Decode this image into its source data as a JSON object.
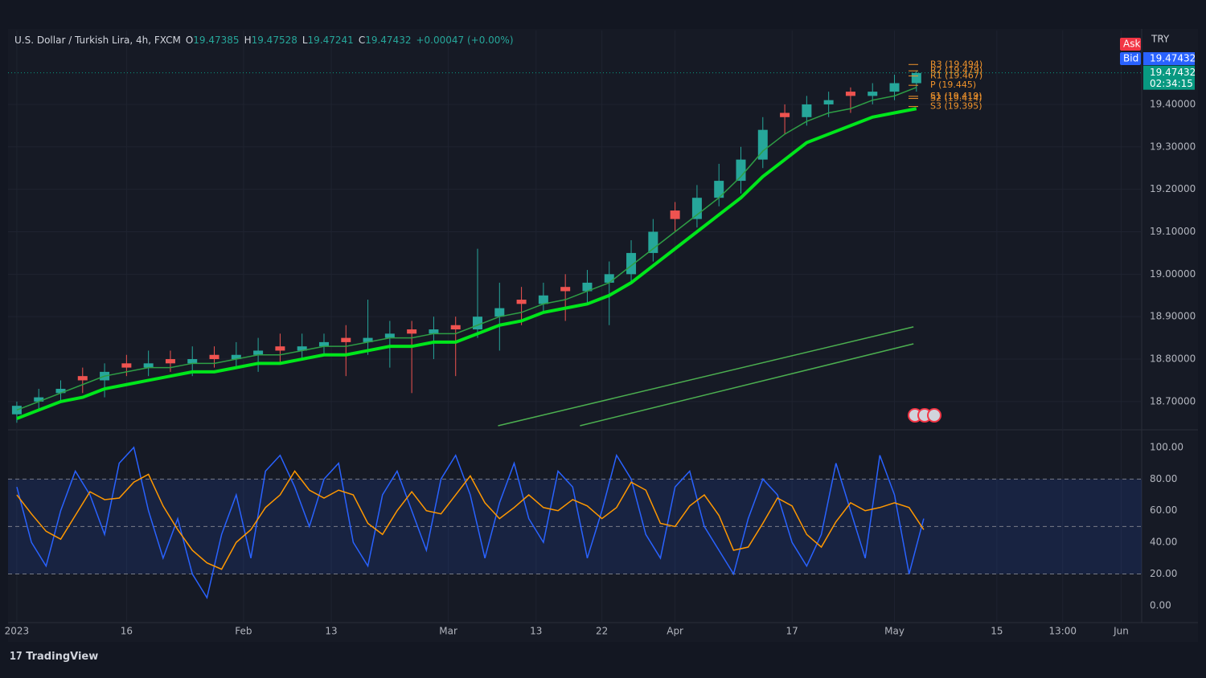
{
  "header": {
    "title": "U.S. Dollar / Turkish Lira, 4h, FXCM",
    "ohlc": [
      {
        "label": "O",
        "value": 19.47385
      },
      {
        "label": "H",
        "value": 19.47528
      },
      {
        "label": "L",
        "value": 19.47241
      },
      {
        "label": "C",
        "value": 19.47432
      }
    ],
    "change": "+0.00047 (+0.00%)",
    "currency": "TRY",
    "ask_label": "Ask",
    "bid_label": "Bid",
    "bid": 19.47432,
    "last_price": 19.47432,
    "countdown": "02:34:15"
  },
  "footer": {
    "brand": "TradingView"
  },
  "chart_data": [
    {
      "type": "candlestick",
      "up_color": "#26a69a",
      "down_color": "#ef5350",
      "grid": true,
      "xlim": [
        -1.2,
        153.8
      ],
      "ylim": [
        18.643,
        19.574
      ],
      "xticks": [
        {
          "value": 0,
          "label": "2023"
        },
        {
          "value": 15,
          "label": "16"
        },
        {
          "value": 31,
          "label": "Feb"
        },
        {
          "value": 43,
          "label": "13"
        },
        {
          "value": 59,
          "label": "Mar"
        },
        {
          "value": 71,
          "label": "13"
        },
        {
          "value": 80,
          "label": "22"
        },
        {
          "value": 90,
          "label": "Apr"
        },
        {
          "value": 106,
          "label": "17"
        },
        {
          "value": 120,
          "label": "May"
        },
        {
          "value": 134,
          "label": "15"
        },
        {
          "value": 143,
          "label": "13:00"
        },
        {
          "value": 151,
          "label": "Jun"
        }
      ],
      "yticks": [
        {
          "value": 18.7,
          "label": "18.70000"
        },
        {
          "value": 18.8,
          "label": "18.80000"
        },
        {
          "value": 18.9,
          "label": "18.90000"
        },
        {
          "value": 19.0,
          "label": "19.00000"
        },
        {
          "value": 19.1,
          "label": "19.10000"
        },
        {
          "value": 19.2,
          "label": "19.20000"
        },
        {
          "value": 19.3,
          "label": "19.30000"
        },
        {
          "value": 19.4,
          "label": "19.40000"
        }
      ],
      "x": [
        0,
        3,
        6,
        9,
        12,
        15,
        18,
        21,
        24,
        27,
        30,
        33,
        36,
        39,
        42,
        45,
        48,
        51,
        54,
        57,
        60,
        63,
        66,
        69,
        72,
        75,
        78,
        81,
        84,
        87,
        90,
        93,
        96,
        99,
        102,
        105,
        108,
        111,
        114,
        117,
        120,
        123
      ],
      "open": [
        18.67,
        18.7,
        18.72,
        18.76,
        18.75,
        18.79,
        18.78,
        18.8,
        18.79,
        18.81,
        18.8,
        18.81,
        18.83,
        18.82,
        18.83,
        18.85,
        18.84,
        18.85,
        18.87,
        18.86,
        18.88,
        18.87,
        18.9,
        18.94,
        18.93,
        18.97,
        18.96,
        18.98,
        19.0,
        19.05,
        19.15,
        19.13,
        19.18,
        19.22,
        19.27,
        19.38,
        19.37,
        19.4,
        19.43,
        19.42,
        19.43,
        19.45
      ],
      "high": [
        18.7,
        18.73,
        18.75,
        18.78,
        18.79,
        18.81,
        18.82,
        18.82,
        18.83,
        18.83,
        18.84,
        18.85,
        18.86,
        18.86,
        18.86,
        18.88,
        18.94,
        18.89,
        18.89,
        18.9,
        18.9,
        19.06,
        18.98,
        18.97,
        18.98,
        19.0,
        19.01,
        19.03,
        19.08,
        19.13,
        19.17,
        19.21,
        19.26,
        19.3,
        19.37,
        19.4,
        19.42,
        19.43,
        19.44,
        19.45,
        19.47,
        19.48
      ],
      "low": [
        18.65,
        18.68,
        18.7,
        18.72,
        18.71,
        18.76,
        18.76,
        18.77,
        18.76,
        18.78,
        18.78,
        18.77,
        18.79,
        18.8,
        18.81,
        18.76,
        18.81,
        18.78,
        18.72,
        18.8,
        18.76,
        18.85,
        18.82,
        18.88,
        18.91,
        18.89,
        18.93,
        18.88,
        18.98,
        19.03,
        19.1,
        19.11,
        19.16,
        19.19,
        19.25,
        19.33,
        19.35,
        19.37,
        19.38,
        19.4,
        19.41,
        19.43
      ],
      "close": [
        18.69,
        18.71,
        18.73,
        18.75,
        18.77,
        18.78,
        18.79,
        18.79,
        18.8,
        18.8,
        18.81,
        18.82,
        18.82,
        18.83,
        18.84,
        18.84,
        18.85,
        18.86,
        18.86,
        18.87,
        18.87,
        18.9,
        18.92,
        18.93,
        18.95,
        18.96,
        18.98,
        19.0,
        19.05,
        19.1,
        19.13,
        19.18,
        19.22,
        19.27,
        19.34,
        19.37,
        19.4,
        19.41,
        19.42,
        19.43,
        19.45,
        19.474
      ],
      "overlays": [
        {
          "color": "#00e61b",
          "width": 4,
          "values": [
            18.66,
            18.68,
            18.7,
            18.71,
            18.73,
            18.74,
            18.75,
            18.76,
            18.77,
            18.77,
            18.78,
            18.79,
            18.79,
            18.8,
            18.81,
            18.81,
            18.82,
            18.83,
            18.83,
            18.84,
            18.84,
            18.86,
            18.88,
            18.89,
            18.91,
            18.92,
            18.93,
            18.95,
            18.98,
            19.02,
            19.06,
            19.1,
            19.14,
            19.18,
            19.23,
            19.27,
            19.31,
            19.33,
            19.35,
            19.37,
            19.38,
            19.39
          ]
        },
        {
          "color": "#2e9e45",
          "width": 1.5,
          "values": [
            18.68,
            18.7,
            18.72,
            18.74,
            18.76,
            18.77,
            18.78,
            18.78,
            18.79,
            18.79,
            18.8,
            18.81,
            18.81,
            18.82,
            18.83,
            18.83,
            18.84,
            18.85,
            18.85,
            18.86,
            18.86,
            18.88,
            18.9,
            18.91,
            18.93,
            18.94,
            18.96,
            18.98,
            19.02,
            19.06,
            19.1,
            19.14,
            19.18,
            19.23,
            19.29,
            19.33,
            19.36,
            19.38,
            19.39,
            19.41,
            19.42,
            19.44
          ]
        }
      ],
      "trendlines": [
        {
          "color": "#4caf50",
          "x": [
            65.8,
            122.6
          ],
          "y": [
            18.643,
            18.876
          ]
        },
        {
          "color": "#4caf50",
          "x": [
            77.0,
            122.6
          ],
          "y": [
            18.643,
            18.836
          ]
        }
      ],
      "pivot_color": "#f0932b",
      "pivots": [
        {
          "value": 19.494,
          "label": "R3 (19.494)"
        },
        {
          "value": 19.479,
          "label": "R2 (19.479)"
        },
        {
          "value": 19.467,
          "label": "R1 (19.467)"
        },
        {
          "value": 19.445,
          "label": "P (19.445)"
        },
        {
          "value": 19.419,
          "label": "S1 (19.419)"
        },
        {
          "value": 19.414,
          "label": "S2 (19.414)"
        },
        {
          "value": 19.395,
          "label": "S3 (19.395)"
        }
      ]
    },
    {
      "type": "line",
      "ylim": [
        -10.7,
        108.6
      ],
      "yticks": [
        {
          "value": 0,
          "label": "0.00"
        },
        {
          "value": 20,
          "label": "20.00"
        },
        {
          "value": 40,
          "label": "40.00"
        },
        {
          "value": 60,
          "label": "60.00"
        },
        {
          "value": 80,
          "label": "80.00"
        },
        {
          "value": 100,
          "label": "100.00"
        }
      ],
      "band": [
        20,
        80
      ],
      "midline": 50,
      "band_color": "#2962ff",
      "x": [
        0,
        2,
        4,
        6,
        8,
        10,
        12,
        14,
        16,
        18,
        20,
        22,
        24,
        26,
        28,
        30,
        32,
        34,
        36,
        38,
        40,
        42,
        44,
        46,
        48,
        50,
        52,
        54,
        56,
        58,
        60,
        62,
        64,
        66,
        68,
        70,
        72,
        74,
        76,
        78,
        80,
        82,
        84,
        86,
        88,
        90,
        92,
        94,
        96,
        98,
        100,
        102,
        104,
        106,
        108,
        110,
        112,
        114,
        116,
        118,
        120,
        122,
        124
      ],
      "series": [
        {
          "color": "#2962ff",
          "values": [
            75,
            40,
            25,
            60,
            85,
            70,
            45,
            90,
            100,
            60,
            30,
            55,
            20,
            5,
            45,
            70,
            30,
            85,
            95,
            75,
            50,
            80,
            90,
            40,
            25,
            70,
            85,
            60,
            35,
            80,
            95,
            70,
            30,
            65,
            90,
            55,
            40,
            85,
            75,
            30,
            60,
            95,
            80,
            45,
            30,
            75,
            85,
            50,
            35,
            20,
            55,
            80,
            70,
            40,
            25,
            45,
            90,
            60,
            30,
            95,
            70,
            20,
            55
          ]
        },
        {
          "color": "#ff9800",
          "values": [
            70,
            58,
            47,
            42,
            57,
            72,
            67,
            68,
            78,
            83,
            63,
            48,
            35,
            27,
            23,
            40,
            48,
            62,
            70,
            85,
            73,
            68,
            73,
            70,
            52,
            45,
            60,
            72,
            60,
            58,
            70,
            82,
            65,
            55,
            62,
            70,
            62,
            60,
            67,
            63,
            55,
            62,
            78,
            73,
            52,
            50,
            63,
            70,
            57,
            35,
            37,
            52,
            68,
            63,
            45,
            37,
            53,
            65,
            60,
            62,
            65,
            62,
            48
          ]
        }
      ]
    }
  ]
}
